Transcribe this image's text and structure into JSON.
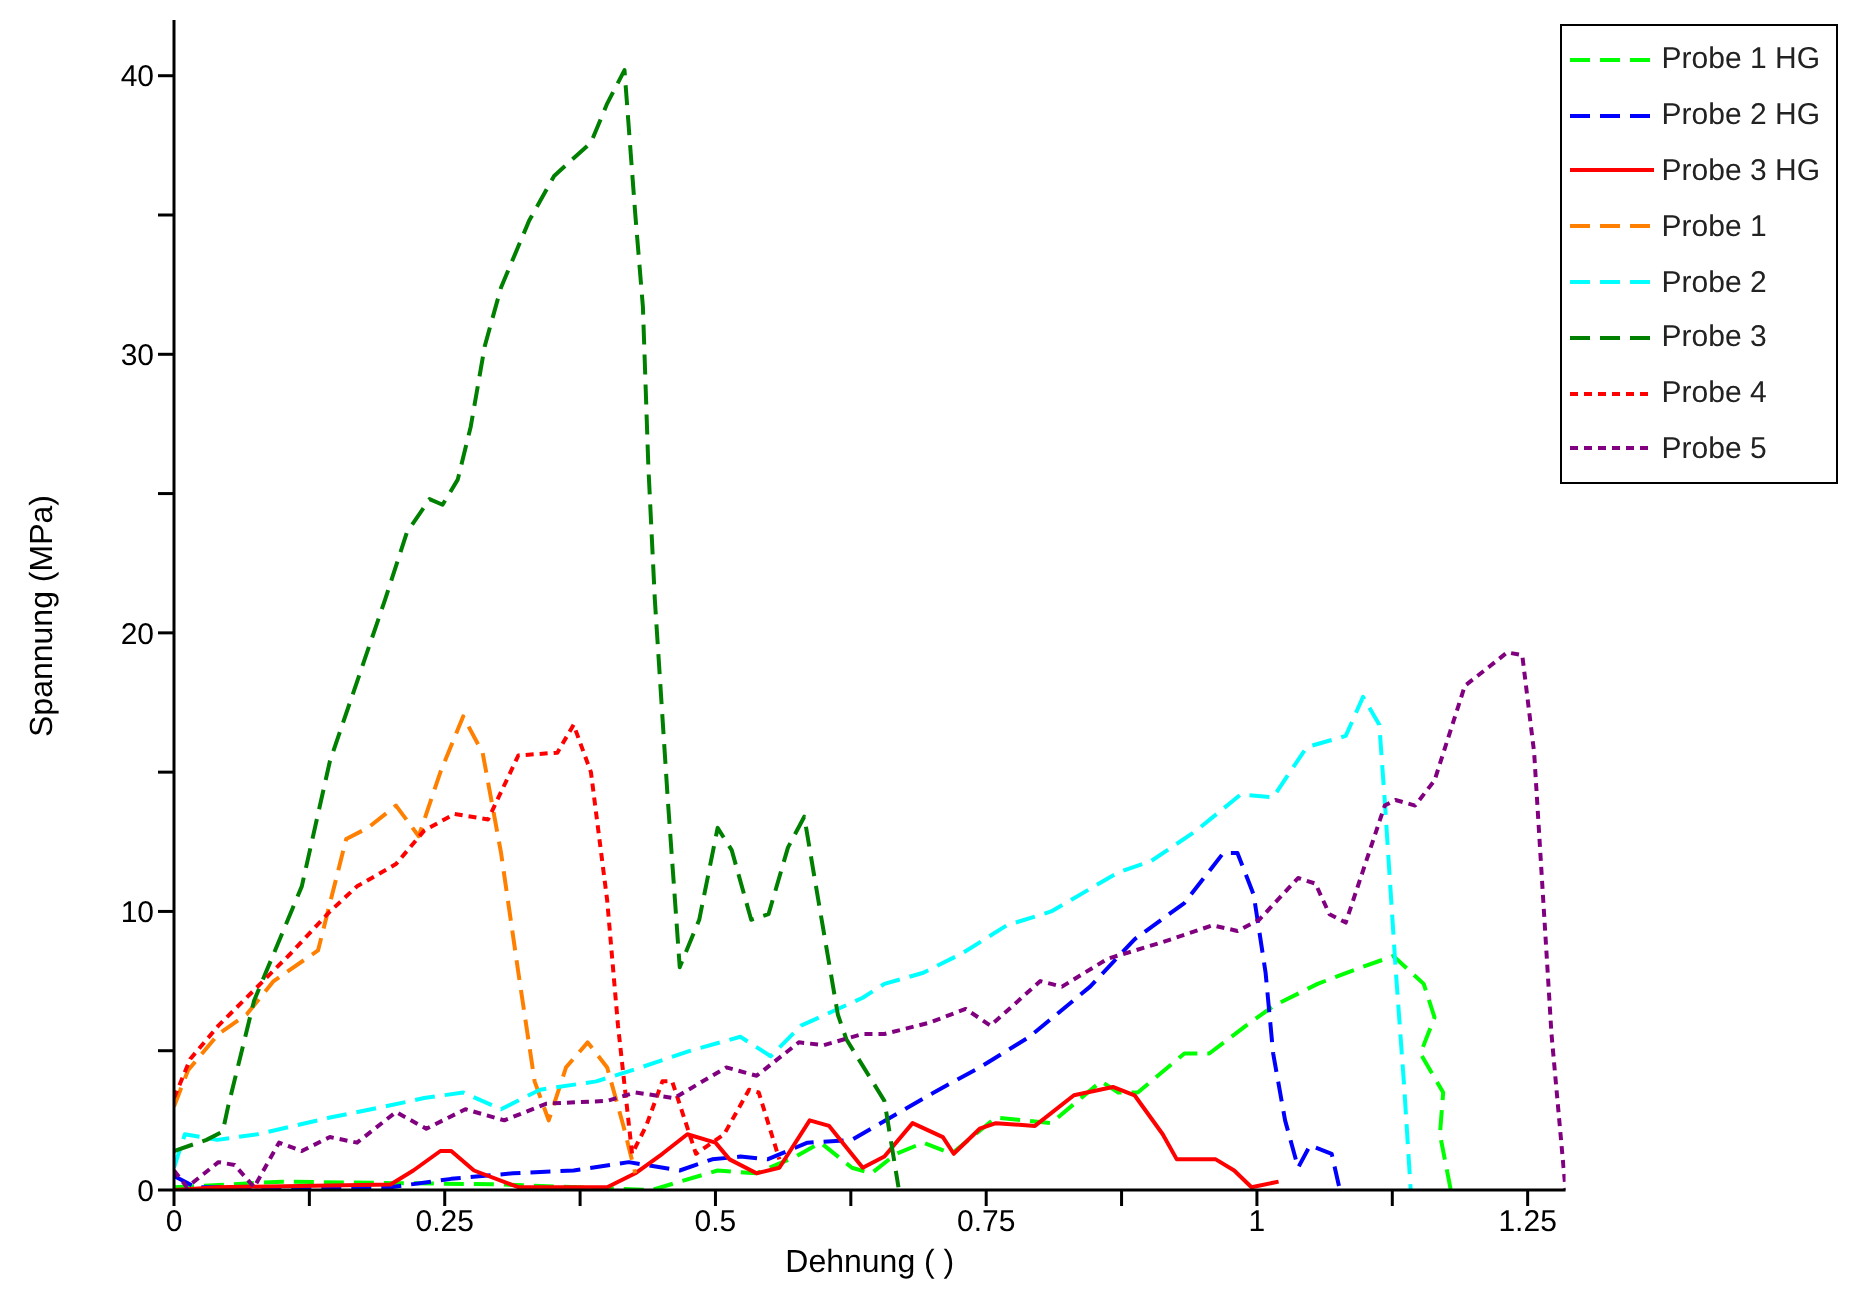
{
  "chart_data": {
    "type": "line",
    "xlabel": "Dehnung ( )",
    "ylabel": "Spannung (MPa)",
    "xlim": [
      0,
      1.285
    ],
    "ylim": [
      0,
      42
    ],
    "xticks": [
      0,
      {
        "value": 0.125,
        "label": null
      },
      0.25,
      {
        "value": 0.375,
        "label": null
      },
      0.5,
      {
        "value": 0.625,
        "label": null
      },
      0.75,
      {
        "value": 0.875,
        "label": null
      },
      1,
      {
        "value": 1.125,
        "label": null
      },
      1.25
    ],
    "yticks": [
      0,
      {
        "value": 5,
        "label": null
      },
      10,
      {
        "value": 15,
        "label": null
      },
      20,
      {
        "value": 25,
        "label": null
      },
      30,
      {
        "value": 35,
        "label": null
      },
      40
    ],
    "grid": false,
    "legend": "top right",
    "marker": "none",
    "series": [
      {
        "name": "Probe 1 HG",
        "color": "#00ff00",
        "line_style": "dashed",
        "x": [
          0,
          0.1,
          0.3,
          0.441,
          0.502,
          0.538,
          0.574,
          0.597,
          0.626,
          0.644,
          0.667,
          0.692,
          0.718,
          0.759,
          0.81,
          0.856,
          0.872,
          0.89,
          0.933,
          0.956,
          0.99,
          1.015,
          1.056,
          1.097,
          1.126,
          1.154,
          1.164,
          1.151,
          1.172,
          1.169,
          1.179
        ],
        "values": [
          0.1,
          0.3,
          0.2,
          0,
          0.7,
          0.6,
          1.2,
          1.7,
          0.8,
          0.6,
          1.3,
          1.7,
          1.3,
          2.6,
          2.4,
          3.9,
          3.5,
          3.5,
          4.9,
          4.9,
          5.9,
          6.6,
          7.4,
          8.0,
          8.4,
          7.4,
          6.2,
          4.9,
          3.5,
          2.0,
          0
        ]
      },
      {
        "name": "Probe 2 HG",
        "color": "#0000ff",
        "line_style": "dashed",
        "x": [
          0,
          0.02,
          0.2,
          0.256,
          0.313,
          0.369,
          0.42,
          0.467,
          0.497,
          0.523,
          0.548,
          0.585,
          0.626,
          0.697,
          0.744,
          0.79,
          0.846,
          0.887,
          0.933,
          0.969,
          0.982,
          0.997,
          1.008,
          1.015,
          1.026,
          1.038,
          1.049,
          1.069,
          1.076
        ],
        "values": [
          0.5,
          0.1,
          0.1,
          0.4,
          0.6,
          0.7,
          1.0,
          0.7,
          1.1,
          1.2,
          1.1,
          1.7,
          1.8,
          3.4,
          4.4,
          5.5,
          7.3,
          9.0,
          10.3,
          12.1,
          12.1,
          10.6,
          7.8,
          4.9,
          2.5,
          0.8,
          1.6,
          1.3,
          0.1
        ]
      },
      {
        "name": "Probe 3 HG",
        "color": "#ff0000",
        "line_style": "solid",
        "x": [
          0,
          0.041,
          0.2,
          0.221,
          0.246,
          0.256,
          0.277,
          0.318,
          0.4,
          0.426,
          0.451,
          0.474,
          0.5,
          0.513,
          0.538,
          0.559,
          0.587,
          0.605,
          0.636,
          0.656,
          0.682,
          0.71,
          0.72,
          0.744,
          0.759,
          0.795,
          0.831,
          0.867,
          0.887,
          0.913,
          0.926,
          0.962,
          0.979,
          0.995,
          1.02
        ],
        "values": [
          0,
          0.1,
          0.2,
          0.7,
          1.4,
          1.4,
          0.7,
          0.1,
          0.1,
          0.6,
          1.3,
          2.0,
          1.7,
          1.1,
          0.6,
          0.8,
          2.5,
          2.3,
          0.8,
          1.2,
          2.4,
          1.9,
          1.3,
          2.2,
          2.4,
          2.3,
          3.4,
          3.7,
          3.4,
          2.0,
          1.1,
          1.1,
          0.7,
          0.1,
          0.3
        ]
      },
      {
        "name": "Probe 1",
        "color": "#ff8000",
        "line_style": "dashed",
        "x": [
          0,
          0.013,
          0.041,
          0.067,
          0.092,
          0.133,
          0.159,
          0.179,
          0.205,
          0.226,
          0.246,
          0.267,
          0.285,
          0.302,
          0.318,
          0.333,
          0.346,
          0.362,
          0.382,
          0.4,
          0.415,
          0.426
        ],
        "values": [
          3.0,
          4.3,
          5.6,
          6.3,
          7.5,
          8.6,
          12.6,
          13.0,
          13.8,
          12.7,
          15.0,
          17.0,
          15.7,
          12.1,
          7.8,
          3.9,
          2.5,
          4.4,
          5.3,
          4.4,
          2.3,
          0.6
        ]
      },
      {
        "name": "Probe 2",
        "color": "#00ffff",
        "line_style": "dashed",
        "x": [
          0,
          0.01,
          0.04,
          0.077,
          0.144,
          0.195,
          0.231,
          0.267,
          0.302,
          0.338,
          0.39,
          0.431,
          0.477,
          0.523,
          0.551,
          0.579,
          0.636,
          0.656,
          0.692,
          0.728,
          0.769,
          0.81,
          0.872,
          0.902,
          0.944,
          0.985,
          1.015,
          1.046,
          1.082,
          1.098,
          1.113,
          1.118,
          1.128,
          1.136,
          1.142
        ],
        "values": [
          0.8,
          2.0,
          1.8,
          2.0,
          2.6,
          3.0,
          3.3,
          3.5,
          2.9,
          3.6,
          3.9,
          4.4,
          5.0,
          5.5,
          4.8,
          5.9,
          6.9,
          7.4,
          7.8,
          8.5,
          9.5,
          10.0,
          11.4,
          11.8,
          12.9,
          14.2,
          14.1,
          15.9,
          16.3,
          17.7,
          16.7,
          14.0,
          8.0,
          3.7,
          0
        ]
      },
      {
        "name": "Probe 3",
        "color": "#008000",
        "line_style": "dashed",
        "x": [
          0,
          0.03,
          0.045,
          0.05,
          0.074,
          0.118,
          0.144,
          0.195,
          0.215,
          0.236,
          0.248,
          0.262,
          0.274,
          0.287,
          0.302,
          0.328,
          0.351,
          0.385,
          0.4,
          0.416,
          0.426,
          0.433,
          0.438,
          0.444,
          0.456,
          0.467,
          0.485,
          0.502,
          0.515,
          0.533,
          0.549,
          0.567,
          0.582,
          0.595,
          0.613,
          0.621,
          0.656,
          0.669
        ],
        "values": [
          1.4,
          1.8,
          2.1,
          3.0,
          6.8,
          10.9,
          15.4,
          21.2,
          23.6,
          24.8,
          24.6,
          25.5,
          27.4,
          30.3,
          32.4,
          34.8,
          36.4,
          37.6,
          39.0,
          40.2,
          35.0,
          31.7,
          26.0,
          21.2,
          14.0,
          8.0,
          9.7,
          13.0,
          12.2,
          9.7,
          9.9,
          12.3,
          13.4,
          10.4,
          6.3,
          5.4,
          3.2,
          0.1
        ]
      },
      {
        "name": "Probe 4",
        "color": "#ff0000",
        "line_style": "dotted",
        "x": [
          0,
          0.015,
          0.041,
          0.072,
          0.108,
          0.144,
          0.169,
          0.205,
          0.231,
          0.259,
          0.29,
          0.318,
          0.354,
          0.369,
          0.385,
          0.4,
          0.41,
          0.423,
          0.436,
          0.451,
          0.46,
          0.482,
          0.508,
          0.531,
          0.54,
          0.559
        ],
        "values": [
          3.3,
          4.7,
          5.9,
          7.1,
          8.5,
          10.0,
          10.9,
          11.7,
          12.9,
          13.5,
          13.3,
          15.6,
          15.7,
          16.7,
          15.0,
          10.4,
          5.9,
          1.3,
          2.3,
          3.9,
          3.9,
          1.3,
          2.0,
          3.6,
          3.5,
          1.1
        ]
      },
      {
        "name": "Probe 5",
        "color": "#800080",
        "line_style": "dotted",
        "x": [
          0,
          0.012,
          0.041,
          0.056,
          0.074,
          0.097,
          0.118,
          0.144,
          0.169,
          0.205,
          0.233,
          0.269,
          0.305,
          0.344,
          0.4,
          0.426,
          0.462,
          0.51,
          0.538,
          0.577,
          0.6,
          0.636,
          0.656,
          0.697,
          0.731,
          0.754,
          0.8,
          0.82,
          0.862,
          0.913,
          0.959,
          0.982,
          1.002,
          1.038,
          1.054,
          1.067,
          1.082,
          1.118,
          1.128,
          1.146,
          1.164,
          1.192,
          1.215,
          1.231,
          1.245,
          1.256,
          1.272,
          1.285
        ],
        "values": [
          0.7,
          0.1,
          1.0,
          0.9,
          0.1,
          1.7,
          1.4,
          1.9,
          1.7,
          2.8,
          2.2,
          2.9,
          2.5,
          3.1,
          3.2,
          3.5,
          3.3,
          4.4,
          4.1,
          5.3,
          5.2,
          5.6,
          5.6,
          6.0,
          6.5,
          5.9,
          7.5,
          7.3,
          8.3,
          8.9,
          9.5,
          9.3,
          9.7,
          11.2,
          11.0,
          9.9,
          9.6,
          13.8,
          14.0,
          13.8,
          14.7,
          18.1,
          18.8,
          19.3,
          19.2,
          15.7,
          5.6,
          0
        ]
      }
    ]
  }
}
